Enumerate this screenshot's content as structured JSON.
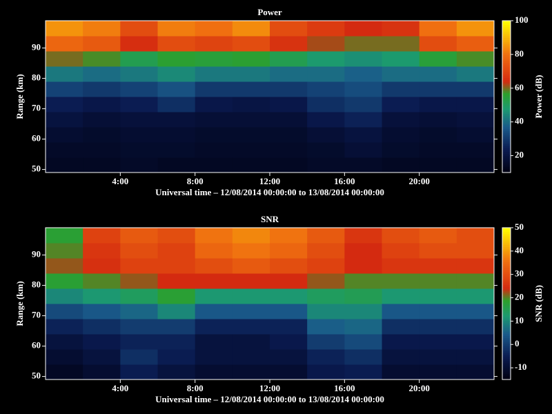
{
  "chart_data": [
    {
      "type": "heatmap",
      "title": "Power",
      "xlabel": "Universal time – 12/08/2014 00:00:00 to 13/08/2014 00:00:00",
      "ylabel": "Range (km)",
      "colorbar_label": "Power (dB)",
      "xlim": [
        0,
        24
      ],
      "xticks": [
        {
          "value": 4,
          "label": "4:00"
        },
        {
          "value": 8,
          "label": "8:00"
        },
        {
          "value": 12,
          "label": "12:00"
        },
        {
          "value": 16,
          "label": "16:00"
        },
        {
          "value": 20,
          "label": "20:00"
        }
      ],
      "ylim": [
        49,
        99
      ],
      "yticks": [
        50,
        60,
        70,
        80,
        90
      ],
      "zlim": [
        10,
        100
      ],
      "zticks": [
        20,
        40,
        60,
        80,
        100
      ],
      "x": [
        1,
        3,
        5,
        7,
        9,
        11,
        13,
        15,
        17,
        19,
        21,
        23
      ],
      "y": [
        51.5,
        56.5,
        61.5,
        66.5,
        71.5,
        76.5,
        81.5,
        86.5,
        91.5,
        96.5
      ],
      "z": [
        [
          14,
          14,
          15,
          14,
          14,
          14,
          14,
          15,
          15,
          14,
          14,
          14
        ],
        [
          15,
          15,
          16,
          16,
          15,
          15,
          15,
          16,
          18,
          16,
          15,
          15
        ],
        [
          17,
          16,
          17,
          17,
          16,
          16,
          16,
          18,
          20,
          17,
          16,
          17
        ],
        [
          20,
          18,
          19,
          19,
          18,
          18,
          18,
          22,
          25,
          19,
          18,
          19
        ],
        [
          24,
          22,
          24,
          28,
          22,
          21,
          22,
          28,
          30,
          24,
          22,
          22
        ],
        [
          32,
          30,
          32,
          35,
          30,
          30,
          30,
          32,
          34,
          30,
          30,
          30
        ],
        [
          42,
          40,
          42,
          45,
          42,
          42,
          40,
          40,
          38,
          40,
          40,
          42
        ],
        [
          60,
          58,
          52,
          56,
          55,
          56,
          52,
          48,
          46,
          48,
          55,
          58
        ],
        [
          78,
          75,
          65,
          72,
          70,
          72,
          66,
          62,
          60,
          60,
          72,
          76
        ],
        [
          85,
          82,
          72,
          82,
          80,
          84,
          72,
          68,
          64,
          66,
          80,
          85
        ]
      ]
    },
    {
      "type": "heatmap",
      "title": "SNR",
      "xlabel": "Universal time – 12/08/2014 00:00:00 to 13/08/2014 00:00:00",
      "ylabel": "Range (km)",
      "colorbar_label": "SNR (dB)",
      "xlim": [
        0,
        24
      ],
      "xticks": [
        {
          "value": 4,
          "label": "4:00"
        },
        {
          "value": 8,
          "label": "8:00"
        },
        {
          "value": 12,
          "label": "12:00"
        },
        {
          "value": 16,
          "label": "16:00"
        },
        {
          "value": 20,
          "label": "20:00"
        }
      ],
      "ylim": [
        49,
        99
      ],
      "yticks": [
        50,
        60,
        70,
        80,
        90
      ],
      "zlim": [
        -15,
        50
      ],
      "zticks": [
        -10,
        0,
        10,
        20,
        30,
        40,
        50
      ],
      "x": [
        1,
        3,
        5,
        7,
        9,
        11,
        13,
        15,
        17,
        19,
        21,
        23
      ],
      "y": [
        51.5,
        56.5,
        61.5,
        66.5,
        71.5,
        76.5,
        81.5,
        86.5,
        91.5,
        96.5
      ],
      "z": [
        [
          -12,
          -10,
          -5,
          -8,
          -10,
          -10,
          -10,
          -6,
          -5,
          -10,
          -10,
          -10
        ],
        [
          -10,
          -8,
          -2,
          -5,
          -8,
          -8,
          -8,
          -4,
          -2,
          -8,
          -8,
          -8
        ],
        [
          -8,
          -6,
          -4,
          -4,
          -8,
          -8,
          -6,
          0,
          2,
          -6,
          -6,
          -6
        ],
        [
          -4,
          -2,
          0,
          0,
          -4,
          -4,
          -4,
          5,
          6,
          -2,
          -2,
          -2
        ],
        [
          2,
          4,
          6,
          10,
          4,
          4,
          4,
          10,
          10,
          4,
          4,
          4
        ],
        [
          10,
          12,
          14,
          18,
          12,
          12,
          12,
          14,
          15,
          12,
          12,
          12
        ],
        [
          18,
          20,
          22,
          24,
          24,
          24,
          24,
          22,
          20,
          20,
          20,
          20
        ],
        [
          22,
          25,
          28,
          28,
          30,
          32,
          30,
          28,
          24,
          26,
          26,
          26
        ],
        [
          20,
          26,
          30,
          28,
          34,
          36,
          34,
          30,
          24,
          28,
          30,
          30
        ],
        [
          18,
          28,
          32,
          30,
          36,
          38,
          36,
          32,
          26,
          30,
          32,
          30
        ]
      ]
    }
  ]
}
